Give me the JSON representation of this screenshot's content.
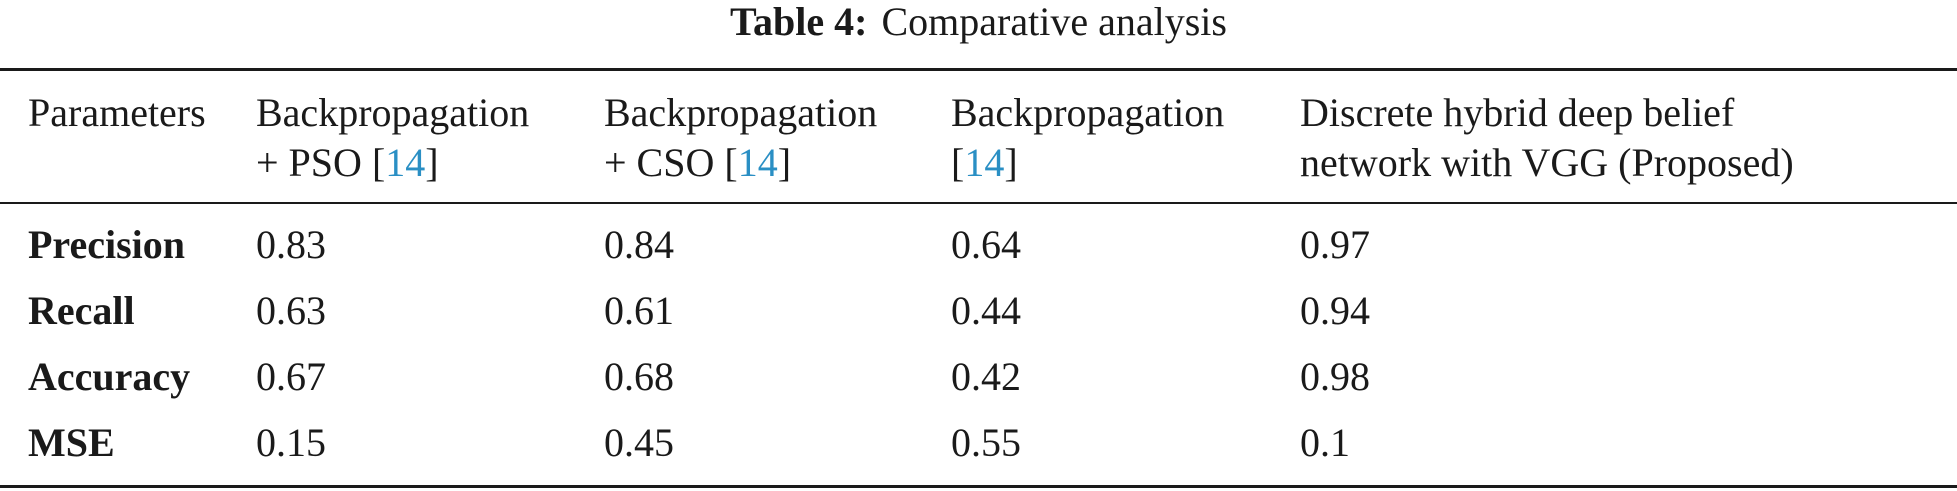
{
  "caption": {
    "label": "Table 4:",
    "title": "Comparative analysis"
  },
  "table": {
    "header": {
      "col0": "Parameters",
      "col1": {
        "line1": "Backpropagation",
        "line2_pre": "+ PSO [",
        "ref": "14",
        "line2_post": "]"
      },
      "col2": {
        "line1": "Backpropagation",
        "line2_pre": "+ CSO [",
        "ref": "14",
        "line2_post": "]"
      },
      "col3": {
        "line1": "Backpropagation",
        "line2_pre": "[",
        "ref": "14",
        "line2_post": "]"
      },
      "col4": {
        "line1": "Discrete hybrid deep belief",
        "line2": "network with VGG (Proposed)"
      }
    },
    "rows": [
      {
        "label": "Precision",
        "values": [
          "0.83",
          "0.84",
          "0.64",
          "0.97"
        ]
      },
      {
        "label": "Recall",
        "values": [
          "0.63",
          "0.61",
          "0.44",
          "0.94"
        ]
      },
      {
        "label": "Accuracy",
        "values": [
          "0.67",
          "0.68",
          "0.42",
          "0.98"
        ]
      },
      {
        "label": "MSE",
        "values": [
          "0.15",
          "0.45",
          "0.55",
          "0.1"
        ]
      }
    ]
  },
  "colors": {
    "text": "#1a1a1a",
    "reference_link": "#2a8fc4"
  }
}
